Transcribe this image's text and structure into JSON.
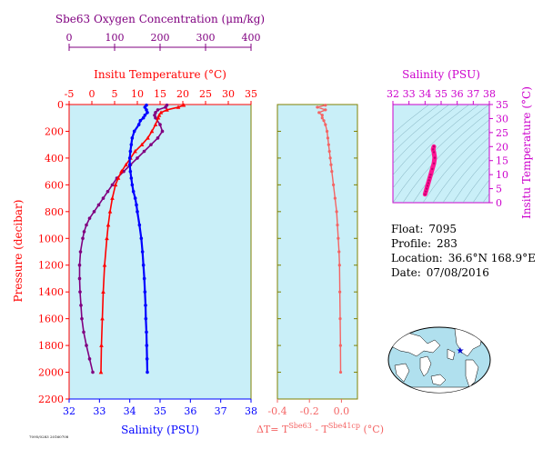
{
  "colors": {
    "panel_bg": "#c9eff8",
    "oxygen": "#800080",
    "temperature": "#ff0000",
    "salinity": "#0000ff",
    "delta": "#f46464",
    "axis_olive": "#808000",
    "ts_curve": "#ff1493",
    "ts_axis": "#cc00cc",
    "map_land": "#ffffff",
    "map_ocean": "#b0e0ee",
    "float_marker": "#0000cc"
  },
  "labels": {
    "oxygen_axis_title": "Sbe63 Oxygen Concentration (μm/kg)",
    "temperature_axis_title": "Insitu Temperature (°C)",
    "salinity_axis_title": "Salinity (PSU)",
    "pressure_axis_title": "Pressure (decibar)",
    "ts_salinity_title": "Salinity (PSU)",
    "ts_temperature_title": "Insitu Temperature (°C)",
    "delta_axis_title_main": "ΔT= T",
    "delta_axis_sup1": "Sbe63",
    "delta_axis_mid": " - T",
    "delta_axis_sup2": "Sbe41cp",
    "delta_axis_unit": " (°C)",
    "footer_code": "7095/0283 20160708"
  },
  "info": {
    "float_label": "Float:",
    "float_value": "7095",
    "profile_label": "Profile:",
    "profile_value": "283",
    "location_label": "Location:",
    "location_value": "36.6°N  168.9°E",
    "date_label": "Date:",
    "date_value": "07/08/2016"
  },
  "chart_data": [
    {
      "type": "line",
      "title": "",
      "pressure_axis": {
        "label": "Pressure (decibar)",
        "range": [
          2200,
          0
        ],
        "ticks": [
          0,
          200,
          400,
          600,
          800,
          1000,
          1200,
          1400,
          1600,
          1800,
          2000,
          2200
        ]
      },
      "axes": {
        "salinity": {
          "label": "Salinity (PSU)",
          "range": [
            32,
            38
          ],
          "ticks": [
            32,
            33,
            34,
            35,
            36,
            37,
            38
          ]
        },
        "temperature": {
          "label": "Insitu Temperature (°C)",
          "range": [
            -5,
            35
          ],
          "ticks": [
            -5,
            0,
            5,
            10,
            15,
            20,
            25,
            30,
            35
          ]
        },
        "oxygen": {
          "label": "Sbe63 Oxygen Concentration (μm/kg)",
          "range": [
            0,
            400
          ],
          "ticks": [
            0,
            100,
            200,
            300,
            400
          ]
        }
      },
      "series": [
        {
          "name": "Salinity (PSU)",
          "axis": "salinity",
          "pressure": [
            5,
            20,
            40,
            60,
            80,
            100,
            120,
            150,
            200,
            250,
            300,
            350,
            400,
            450,
            500,
            550,
            600,
            650,
            700,
            750,
            800,
            900,
            1000,
            1100,
            1200,
            1300,
            1400,
            1500,
            1600,
            1700,
            1800,
            1900,
            2000
          ],
          "values": [
            34.55,
            34.5,
            34.55,
            34.58,
            34.5,
            34.45,
            34.35,
            34.3,
            34.15,
            34.08,
            34.05,
            34.02,
            34.0,
            34.0,
            34.02,
            34.05,
            34.08,
            34.12,
            34.18,
            34.22,
            34.25,
            34.32,
            34.38,
            34.42,
            34.45,
            34.48,
            34.5,
            34.52,
            34.53,
            34.55,
            34.56,
            34.57,
            34.58
          ]
        },
        {
          "name": "Insitu Temperature (°C)",
          "axis": "temperature",
          "pressure": [
            5,
            20,
            40,
            60,
            80,
            100,
            150,
            200,
            250,
            300,
            350,
            400,
            450,
            500,
            550,
            600,
            700,
            800,
            900,
            1000,
            1200,
            1400,
            1600,
            1800,
            2000
          ],
          "values": [
            20.2,
            19.0,
            16.5,
            15.2,
            14.8,
            14.6,
            14.0,
            13.2,
            12.3,
            11.0,
            9.5,
            8.5,
            7.5,
            6.5,
            5.8,
            5.2,
            4.5,
            4.0,
            3.6,
            3.3,
            2.8,
            2.5,
            2.3,
            2.1,
            2.0
          ]
        },
        {
          "name": "Sbe63 Oxygen Concentration (μm/kg)",
          "axis": "oxygen",
          "pressure": [
            5,
            20,
            40,
            60,
            80,
            100,
            150,
            200,
            250,
            300,
            350,
            400,
            450,
            500,
            550,
            600,
            650,
            700,
            750,
            800,
            850,
            900,
            950,
            1000,
            1100,
            1200,
            1300,
            1400,
            1500,
            1600,
            1700,
            1800,
            1900,
            2000
          ],
          "values": [
            215,
            212,
            195,
            190,
            188,
            190,
            200,
            205,
            195,
            180,
            165,
            150,
            135,
            120,
            105,
            95,
            85,
            75,
            65,
            55,
            45,
            38,
            33,
            30,
            25,
            23,
            23,
            24,
            26,
            28,
            32,
            38,
            45,
            52
          ]
        }
      ]
    },
    {
      "type": "line",
      "title": "",
      "xlabel": "ΔT= T Sbe63 - T Sbe41cp (°C)",
      "xlim": [
        -0.4,
        0.1
      ],
      "xticks": [
        -0.4,
        -0.2,
        0.0
      ],
      "pressure_range": [
        2200,
        0
      ],
      "series": [
        {
          "name": "",
          "pressure": [
            5,
            20,
            40,
            60,
            80,
            100,
            120,
            150,
            200,
            250,
            300,
            350,
            400,
            450,
            500,
            600,
            700,
            800,
            900,
            1000,
            1100,
            1200,
            1400,
            1600,
            1800,
            2000
          ],
          "values": [
            -0.1,
            -0.15,
            -0.1,
            -0.14,
            -0.12,
            -0.12,
            -0.11,
            -0.1,
            -0.09,
            -0.085,
            -0.08,
            -0.075,
            -0.07,
            -0.065,
            -0.06,
            -0.05,
            -0.04,
            -0.03,
            -0.025,
            -0.02,
            -0.015,
            -0.012,
            -0.01,
            -0.008,
            -0.006,
            -0.005
          ]
        }
      ]
    },
    {
      "type": "scatter",
      "title": "",
      "xlabel": "Salinity (PSU)",
      "ylabel": "Insitu Temperature (°C)",
      "xlim": [
        32,
        38
      ],
      "ylim": [
        0,
        35
      ],
      "xticks": [
        32,
        33,
        34,
        35,
        36,
        37,
        38
      ],
      "yticks": [
        0,
        5,
        10,
        15,
        20,
        25,
        30,
        35
      ],
      "series": [
        {
          "name": "",
          "x": [
            34.0,
            34.05,
            34.1,
            34.15,
            34.2,
            34.25,
            34.3,
            34.35,
            34.45,
            34.55,
            34.6,
            34.55,
            34.5,
            34.55
          ],
          "y": [
            3.0,
            4.0,
            5.0,
            6.0,
            7.0,
            8.0,
            9.0,
            10.0,
            12.0,
            14.0,
            16.0,
            18.0,
            19.0,
            20.0
          ]
        }
      ]
    }
  ]
}
